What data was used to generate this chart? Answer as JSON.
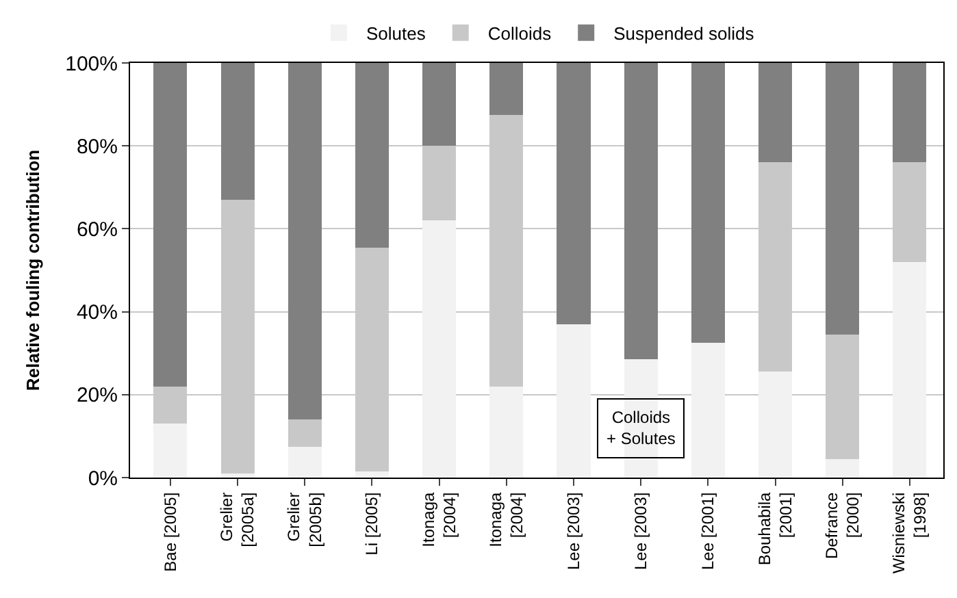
{
  "chart_data": {
    "type": "bar",
    "stacked": true,
    "ylabel": "Relative fouling contribution",
    "categories": [
      "Bae [2005]",
      "Grelier [2005a]",
      "Grelier [2005b]",
      "Li [2005]",
      "Itonaga [2004]",
      "Itonaga [2004]",
      "Lee [2003]",
      "Lee [2003]",
      "Lee [2001]",
      "Bouhabila [2001]",
      "Defrance [2000]",
      "Wisniewski [1998]"
    ],
    "series": [
      {
        "name": "Solutes",
        "color": "#f2f2f2",
        "values": [
          13,
          1,
          7.5,
          1.5,
          62,
          22,
          37,
          28.5,
          32.5,
          25.5,
          4.5,
          52
        ]
      },
      {
        "name": "Colloids",
        "color": "#c8c8c8",
        "values": [
          9,
          66,
          6.5,
          54,
          18,
          65.5,
          0,
          0,
          0,
          50.5,
          30,
          24
        ]
      },
      {
        "name": "Suspended solids",
        "color": "#808080",
        "values": [
          78,
          33,
          86,
          44.5,
          20,
          12.5,
          63,
          71.5,
          67.5,
          24,
          65.5,
          24
        ]
      }
    ],
    "ylim": [
      0,
      100
    ],
    "yticks": [
      {
        "value": 0,
        "label": "0%"
      },
      {
        "value": 20,
        "label": "20%"
      },
      {
        "value": 40,
        "label": "40%"
      },
      {
        "value": 60,
        "label": "60%"
      },
      {
        "value": 80,
        "label": "80%"
      },
      {
        "value": 100,
        "label": "100%"
      }
    ],
    "grid": "y",
    "legend": "top",
    "annotations": [
      "Colloids\n+ Solutes"
    ]
  }
}
